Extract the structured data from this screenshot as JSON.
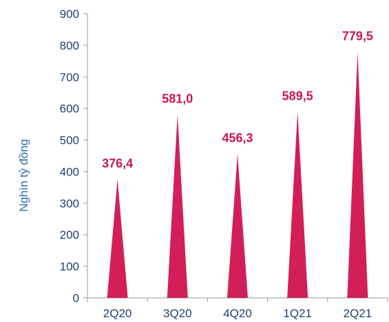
{
  "chart_data": {
    "type": "bar",
    "bar_shape": "cone",
    "categories": [
      "2Q20",
      "3Q20",
      "4Q20",
      "1Q21",
      "2Q21"
    ],
    "values": [
      376.4,
      581.0,
      456.3,
      589.5,
      779.5
    ],
    "data_labels": [
      "376,4",
      "581,0",
      "456,3",
      "589,5",
      "779,5"
    ],
    "ylabel": "Nghìn tỷ đồng",
    "ylim": [
      0,
      900
    ],
    "yticks": [
      0,
      100,
      200,
      300,
      400,
      500,
      600,
      700,
      800,
      900
    ],
    "grid": false,
    "colors": {
      "bar": "#d21f57",
      "data_label": "#c8194f",
      "axis": "#9a9a9a",
      "tick_text": "#1f3f6e",
      "axis_title": "#2a6aa8"
    }
  }
}
